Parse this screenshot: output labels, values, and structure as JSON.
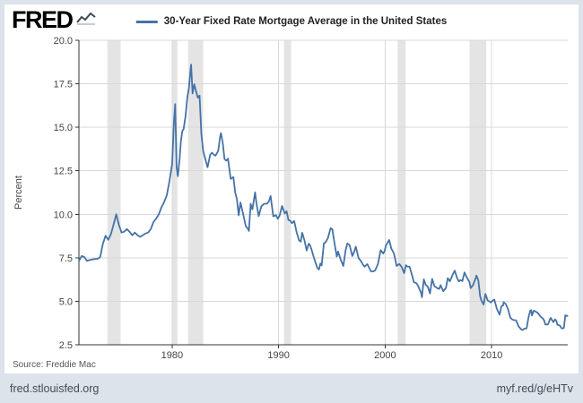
{
  "branding": {
    "logo_text": "FRED",
    "logo_icon": "line-graph-icon"
  },
  "legend": {
    "series_label": "30-Year Fixed Rate Mortgage Average in the United States",
    "swatch_color": "#4572a7"
  },
  "footer": {
    "source": "Source: Freddie Mac",
    "site_url": "fred.stlouisfed.org",
    "short_url": "myf.red/g/eHTv"
  },
  "chart_data": {
    "type": "line",
    "title": "30-Year Fixed Rate Mortgage Average in the United States",
    "xlabel": "",
    "ylabel": "Percent",
    "x_range": [
      1971.25,
      2017.15
    ],
    "ylim": [
      2.5,
      20.0
    ],
    "y_ticks": [
      2.5,
      5.0,
      7.5,
      10.0,
      12.5,
      15.0,
      17.5,
      20.0
    ],
    "x_ticks": [
      1980,
      1990,
      2000,
      2010
    ],
    "grid": true,
    "legend_position": "top-center",
    "line_color": "#4572a7",
    "grid_color": "#d8d8d8",
    "axis_color": "#333333",
    "recession_band_color": "#e4e4e4",
    "recession_bands": [
      [
        1973.92,
        1975.17
      ],
      [
        1980.0,
        1980.5
      ],
      [
        1981.5,
        1982.92
      ],
      [
        1990.5,
        1991.17
      ],
      [
        2001.17,
        2001.92
      ],
      [
        2007.92,
        2009.5
      ]
    ],
    "series": [
      {
        "name": "30-Year Fixed Rate Mortgage Average in the United States",
        "points": [
          [
            1971.25,
            7.31
          ],
          [
            1971.5,
            7.6
          ],
          [
            1971.75,
            7.55
          ],
          [
            1972.0,
            7.33
          ],
          [
            1972.25,
            7.37
          ],
          [
            1972.5,
            7.4
          ],
          [
            1972.75,
            7.43
          ],
          [
            1973.0,
            7.44
          ],
          [
            1973.25,
            7.54
          ],
          [
            1973.5,
            8.3
          ],
          [
            1973.75,
            8.77
          ],
          [
            1974.0,
            8.54
          ],
          [
            1974.25,
            8.85
          ],
          [
            1974.5,
            9.4
          ],
          [
            1974.75,
            10.0
          ],
          [
            1975.0,
            9.4
          ],
          [
            1975.25,
            8.95
          ],
          [
            1975.5,
            9.0
          ],
          [
            1975.75,
            9.15
          ],
          [
            1976.0,
            9.0
          ],
          [
            1976.25,
            8.8
          ],
          [
            1976.5,
            8.95
          ],
          [
            1976.75,
            8.8
          ],
          [
            1977.0,
            8.7
          ],
          [
            1977.25,
            8.8
          ],
          [
            1977.5,
            8.9
          ],
          [
            1977.75,
            8.95
          ],
          [
            1978.0,
            9.15
          ],
          [
            1978.25,
            9.55
          ],
          [
            1978.5,
            9.75
          ],
          [
            1978.75,
            10.0
          ],
          [
            1979.0,
            10.4
          ],
          [
            1979.25,
            10.7
          ],
          [
            1979.5,
            11.1
          ],
          [
            1979.75,
            11.9
          ],
          [
            1980.0,
            12.88
          ],
          [
            1980.17,
            15.28
          ],
          [
            1980.29,
            16.33
          ],
          [
            1980.42,
            12.71
          ],
          [
            1980.54,
            12.19
          ],
          [
            1980.71,
            13.2
          ],
          [
            1980.83,
            14.21
          ],
          [
            1980.96,
            14.79
          ],
          [
            1981.08,
            14.9
          ],
          [
            1981.25,
            15.58
          ],
          [
            1981.42,
            16.7
          ],
          [
            1981.58,
            17.28
          ],
          [
            1981.75,
            18.45
          ],
          [
            1981.79,
            18.6
          ],
          [
            1981.92,
            16.95
          ],
          [
            1982.08,
            17.48
          ],
          [
            1982.21,
            17.16
          ],
          [
            1982.42,
            16.7
          ],
          [
            1982.58,
            16.82
          ],
          [
            1982.75,
            14.61
          ],
          [
            1982.92,
            13.62
          ],
          [
            1983.08,
            13.25
          ],
          [
            1983.33,
            12.7
          ],
          [
            1983.58,
            13.43
          ],
          [
            1983.75,
            13.54
          ],
          [
            1983.92,
            13.42
          ],
          [
            1984.08,
            13.37
          ],
          [
            1984.33,
            13.65
          ],
          [
            1984.5,
            14.42
          ],
          [
            1984.58,
            14.67
          ],
          [
            1984.75,
            14.13
          ],
          [
            1984.92,
            13.18
          ],
          [
            1985.08,
            13.08
          ],
          [
            1985.25,
            13.2
          ],
          [
            1985.5,
            12.03
          ],
          [
            1985.75,
            12.14
          ],
          [
            1985.92,
            11.26
          ],
          [
            1986.08,
            10.88
          ],
          [
            1986.25,
            9.94
          ],
          [
            1986.42,
            10.68
          ],
          [
            1986.67,
            10.01
          ],
          [
            1986.92,
            9.31
          ],
          [
            1987.08,
            9.2
          ],
          [
            1987.21,
            9.04
          ],
          [
            1987.38,
            10.6
          ],
          [
            1987.54,
            10.28
          ],
          [
            1987.79,
            11.26
          ],
          [
            1987.92,
            10.64
          ],
          [
            1988.13,
            9.89
          ],
          [
            1988.38,
            10.46
          ],
          [
            1988.63,
            10.6
          ],
          [
            1988.92,
            10.61
          ],
          [
            1989.08,
            10.73
          ],
          [
            1989.25,
            11.05
          ],
          [
            1989.5,
            9.88
          ],
          [
            1989.75,
            9.95
          ],
          [
            1989.92,
            9.74
          ],
          [
            1990.08,
            9.9
          ],
          [
            1990.33,
            10.48
          ],
          [
            1990.58,
            10.04
          ],
          [
            1990.75,
            10.18
          ],
          [
            1990.92,
            9.67
          ],
          [
            1991.08,
            9.64
          ],
          [
            1991.25,
            9.49
          ],
          [
            1991.46,
            9.62
          ],
          [
            1991.67,
            9.01
          ],
          [
            1991.92,
            8.5
          ],
          [
            1992.08,
            8.43
          ],
          [
            1992.21,
            8.94
          ],
          [
            1992.42,
            8.51
          ],
          [
            1992.63,
            7.92
          ],
          [
            1992.83,
            8.31
          ],
          [
            1992.96,
            8.21
          ],
          [
            1993.08,
            7.99
          ],
          [
            1993.33,
            7.47
          ],
          [
            1993.63,
            6.92
          ],
          [
            1993.79,
            6.83
          ],
          [
            1993.92,
            7.17
          ],
          [
            1994.04,
            7.06
          ],
          [
            1994.25,
            8.32
          ],
          [
            1994.42,
            8.4
          ],
          [
            1994.63,
            8.64
          ],
          [
            1994.88,
            9.2
          ],
          [
            1995.04,
            9.15
          ],
          [
            1995.25,
            8.32
          ],
          [
            1995.46,
            7.57
          ],
          [
            1995.58,
            7.86
          ],
          [
            1995.83,
            7.38
          ],
          [
            1995.96,
            7.2
          ],
          [
            1996.08,
            7.03
          ],
          [
            1996.29,
            7.93
          ],
          [
            1996.46,
            8.32
          ],
          [
            1996.67,
            8.23
          ],
          [
            1996.92,
            7.6
          ],
          [
            1997.08,
            7.82
          ],
          [
            1997.25,
            8.14
          ],
          [
            1997.5,
            7.5
          ],
          [
            1997.75,
            7.29
          ],
          [
            1997.92,
            7.1
          ],
          [
            1998.08,
            6.99
          ],
          [
            1998.33,
            7.14
          ],
          [
            1998.67,
            6.72
          ],
          [
            1998.92,
            6.72
          ],
          [
            1999.08,
            6.79
          ],
          [
            1999.33,
            7.15
          ],
          [
            1999.58,
            7.94
          ],
          [
            1999.83,
            7.74
          ],
          [
            1999.96,
            7.91
          ],
          [
            2000.08,
            8.21
          ],
          [
            2000.38,
            8.52
          ],
          [
            2000.58,
            8.03
          ],
          [
            2000.83,
            7.75
          ],
          [
            2000.96,
            7.38
          ],
          [
            2001.08,
            7.03
          ],
          [
            2001.33,
            7.15
          ],
          [
            2001.58,
            6.95
          ],
          [
            2001.79,
            6.62
          ],
          [
            2001.96,
            7.07
          ],
          [
            2002.08,
            7.0
          ],
          [
            2002.29,
            6.99
          ],
          [
            2002.54,
            6.49
          ],
          [
            2002.71,
            6.09
          ],
          [
            2002.92,
            6.05
          ],
          [
            2003.08,
            5.92
          ],
          [
            2003.38,
            5.48
          ],
          [
            2003.46,
            5.23
          ],
          [
            2003.63,
            6.26
          ],
          [
            2003.83,
            5.93
          ],
          [
            2003.96,
            5.88
          ],
          [
            2004.08,
            5.71
          ],
          [
            2004.21,
            5.45
          ],
          [
            2004.42,
            6.29
          ],
          [
            2004.63,
            5.87
          ],
          [
            2004.92,
            5.75
          ],
          [
            2005.08,
            5.71
          ],
          [
            2005.21,
            5.93
          ],
          [
            2005.46,
            5.58
          ],
          [
            2005.71,
            5.77
          ],
          [
            2005.88,
            6.33
          ],
          [
            2005.96,
            6.27
          ],
          [
            2006.08,
            6.15
          ],
          [
            2006.33,
            6.51
          ],
          [
            2006.54,
            6.76
          ],
          [
            2006.75,
            6.36
          ],
          [
            2006.92,
            6.14
          ],
          [
            2007.08,
            6.22
          ],
          [
            2007.25,
            6.16
          ],
          [
            2007.46,
            6.66
          ],
          [
            2007.67,
            6.38
          ],
          [
            2007.92,
            6.1
          ],
          [
            2008.04,
            5.76
          ],
          [
            2008.25,
            5.92
          ],
          [
            2008.5,
            6.32
          ],
          [
            2008.58,
            6.48
          ],
          [
            2008.75,
            6.2
          ],
          [
            2008.92,
            5.29
          ],
          [
            2009.04,
            5.05
          ],
          [
            2009.25,
            4.81
          ],
          [
            2009.42,
            5.42
          ],
          [
            2009.63,
            5.06
          ],
          [
            2009.92,
            4.93
          ],
          [
            2010.08,
            5.03
          ],
          [
            2010.25,
            5.1
          ],
          [
            2010.5,
            4.56
          ],
          [
            2010.75,
            4.23
          ],
          [
            2010.92,
            4.71
          ],
          [
            2011.08,
            4.76
          ],
          [
            2011.13,
            4.95
          ],
          [
            2011.33,
            4.84
          ],
          [
            2011.54,
            4.55
          ],
          [
            2011.75,
            4.07
          ],
          [
            2011.92,
            3.96
          ],
          [
            2012.08,
            3.92
          ],
          [
            2012.29,
            3.91
          ],
          [
            2012.54,
            3.55
          ],
          [
            2012.79,
            3.38
          ],
          [
            2012.92,
            3.35
          ],
          [
            2013.04,
            3.41
          ],
          [
            2013.29,
            3.45
          ],
          [
            2013.46,
            4.07
          ],
          [
            2013.63,
            4.46
          ],
          [
            2013.71,
            4.49
          ],
          [
            2013.79,
            4.19
          ],
          [
            2013.96,
            4.46
          ],
          [
            2014.08,
            4.43
          ],
          [
            2014.33,
            4.34
          ],
          [
            2014.58,
            4.13
          ],
          [
            2014.83,
            4.0
          ],
          [
            2014.96,
            3.86
          ],
          [
            2015.04,
            3.67
          ],
          [
            2015.29,
            3.67
          ],
          [
            2015.54,
            4.05
          ],
          [
            2015.79,
            3.8
          ],
          [
            2015.96,
            3.96
          ],
          [
            2016.08,
            3.87
          ],
          [
            2016.17,
            3.66
          ],
          [
            2016.42,
            3.6
          ],
          [
            2016.58,
            3.44
          ],
          [
            2016.79,
            3.47
          ],
          [
            2016.92,
            4.2
          ],
          [
            2017.04,
            4.15
          ],
          [
            2017.12,
            4.17
          ]
        ]
      }
    ]
  }
}
